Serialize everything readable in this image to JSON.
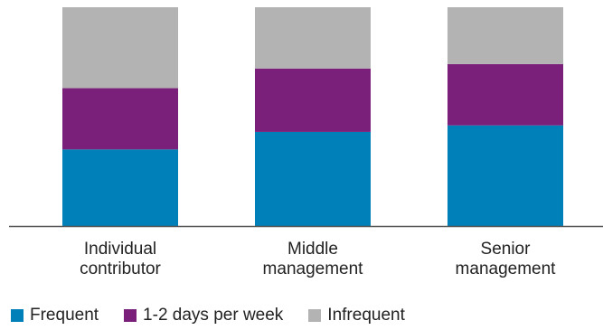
{
  "chart_data": {
    "type": "bar",
    "stacked": true,
    "categories": [
      "Individual contributor",
      "Middle management",
      "Senior management"
    ],
    "category_lines": [
      [
        "Individual",
        "contributor"
      ],
      [
        "Middle",
        "management"
      ],
      [
        "Senior",
        "management"
      ]
    ],
    "series": [
      {
        "name": "Frequent",
        "color": "#0080b8",
        "values": [
          35,
          43,
          46
        ]
      },
      {
        "name": "1-2 days per week",
        "color": "#7a1f7a",
        "values": [
          28,
          29,
          28
        ]
      },
      {
        "name": "Infrequent",
        "color": "#b3b3b3",
        "values": [
          37,
          28,
          26
        ]
      }
    ],
    "ylim": [
      0,
      100
    ],
    "grid": false,
    "legend_position": "bottom-left"
  }
}
